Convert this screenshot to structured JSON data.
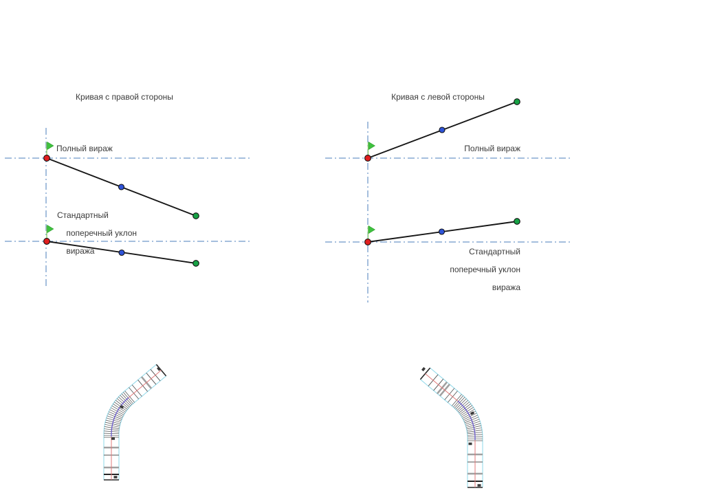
{
  "colors": {
    "text": "#3a3a3a",
    "dashdot": "#4a7ebb",
    "slope": "#161616",
    "marker_red": "#e11f1f",
    "marker_blue": "#2f54d8",
    "marker_green": "#17a245",
    "marker_stroke": "#101010",
    "flag_green": "#3fc23f",
    "flag_edge": "#2f9e2f",
    "flag_pole": "#9ad47a",
    "road_edge": "#98dcec",
    "road_center": "#e07a7a",
    "road_curve": "#6b5fd0",
    "road_tick": "#4f4f4f",
    "road_band": "#a0a0a0",
    "road_dark": "#262626",
    "road_glyph": "#3a3a3a"
  },
  "left_panel": {
    "title": "Кривая с правой стороны",
    "full_superelevation_label": "Полный вираж",
    "standard_slope_label": [
      "Стандартный",
      "поперечный уклон",
      "виража"
    ]
  },
  "right_panel": {
    "title": "Кривая с левой стороны",
    "full_superelevation_label": "Полный вираж",
    "standard_slope_label": [
      "Стандартный",
      "поперечный уклон",
      "виража"
    ]
  }
}
